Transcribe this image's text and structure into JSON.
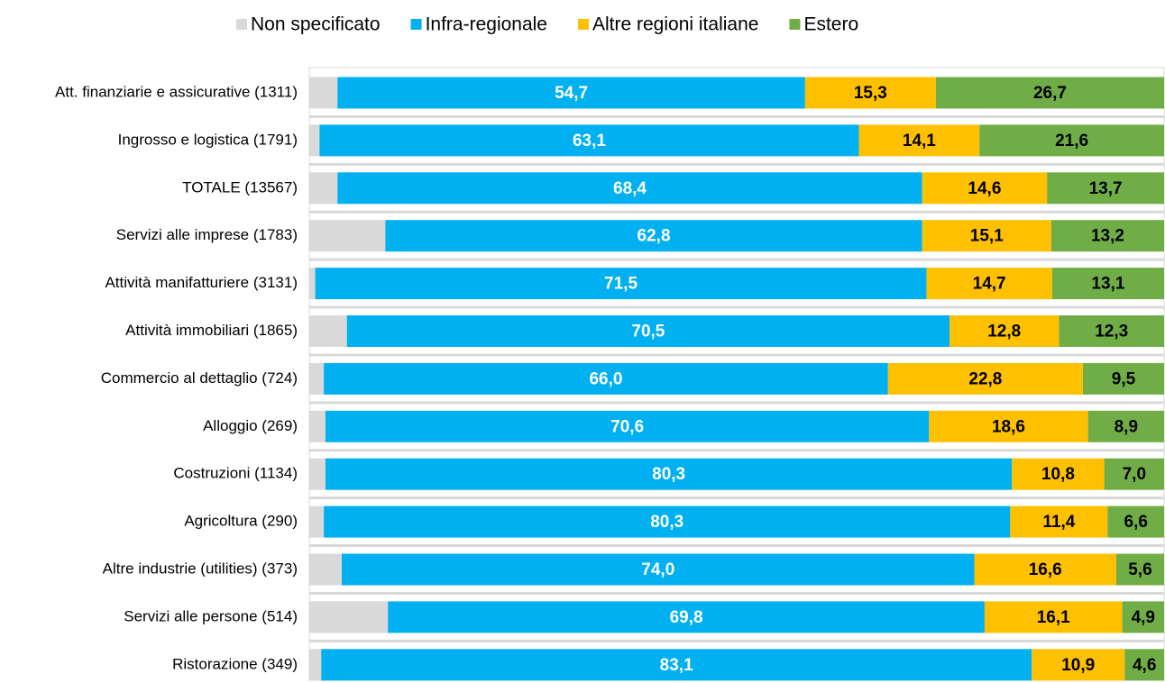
{
  "chart_data": {
    "type": "stacked_barh",
    "categories": [
      "Att. finanziarie e assicurative (1311)",
      "Ingrosso e logistica (1791)",
      "TOTALE (13567)",
      "Servizi alle imprese (1783)",
      "Attività manifatturiere (3131)",
      "Attività immobiliari (1865)",
      "Commercio al dettaglio (724)",
      "Alloggio (269)",
      "Costruzioni (1134)",
      "Agricoltura (290)",
      "Altre industrie (utilities) (373)",
      "Servizi alle persone (514)",
      "Ristorazione (349)"
    ],
    "xlim": [
      0,
      100
    ],
    "legend": "top",
    "series": [
      {
        "name": "Non specificato",
        "color": "#d9d9d9",
        "values": [
          3.3,
          1.2,
          3.3,
          8.9,
          0.7,
          4.4,
          1.7,
          1.9,
          1.9,
          1.7,
          3.8,
          9.2,
          1.4
        ]
      },
      {
        "name": "Infra-regionale",
        "color": "#00b0f0",
        "values": [
          54.7,
          63.1,
          68.4,
          62.8,
          71.5,
          70.5,
          66.0,
          70.6,
          80.3,
          80.3,
          74.0,
          69.8,
          83.1
        ],
        "value_labels": [
          "54,7",
          "63,1",
          "68,4",
          "62,8",
          "71,5",
          "70,5",
          "66,0",
          "70,6",
          "80,3",
          "80,3",
          "74,0",
          "69,8",
          "83,1"
        ]
      },
      {
        "name": "Altre regioni italiane",
        "color": "#ffc000",
        "values": [
          15.3,
          14.1,
          14.6,
          15.1,
          14.7,
          12.8,
          22.8,
          18.6,
          10.8,
          11.4,
          16.6,
          16.1,
          10.9
        ],
        "value_labels": [
          "15,3",
          "14,1",
          "14,6",
          "15,1",
          "14,7",
          "12,8",
          "22,8",
          "18,6",
          "10,8",
          "11,4",
          "16,6",
          "16,1",
          "10,9"
        ]
      },
      {
        "name": "Estero",
        "color": "#70ad47",
        "values": [
          26.7,
          21.6,
          13.7,
          13.2,
          13.1,
          12.3,
          9.5,
          8.9,
          7.0,
          6.6,
          5.6,
          4.9,
          4.6
        ],
        "value_labels": [
          "26,7",
          "21,6",
          "13,7",
          "13,2",
          "13,1",
          "12,3",
          "9,5",
          "8,9",
          "7,0",
          "6,6",
          "5,6",
          "4,9",
          "4,6"
        ]
      }
    ]
  }
}
